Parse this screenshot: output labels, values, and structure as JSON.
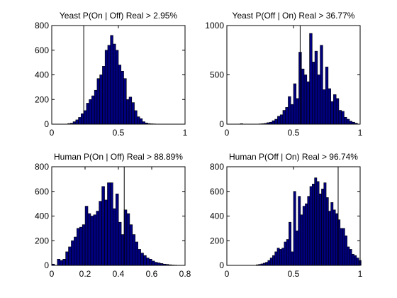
{
  "style": {
    "bar_fill": "#00007f",
    "bar_edge": "#000000",
    "marker_color": "#000000",
    "axes_color": "#000000"
  },
  "chart_data": [
    {
      "type": "bar",
      "title": "Yeast P(On | Off) Real > 2.95%",
      "xlim": [
        0,
        1
      ],
      "ylim": [
        0,
        800
      ],
      "xticks": [
        0,
        0.5,
        1
      ],
      "xtick_labels": [
        "0",
        "0.5",
        "1"
      ],
      "yticks": [
        0,
        200,
        400,
        600,
        800
      ],
      "ytick_labels": [
        "0",
        "200",
        "400",
        "600",
        "800"
      ],
      "bin_start": 0.02,
      "bin_width": 0.02,
      "values": [
        0,
        0,
        0,
        0,
        0,
        5,
        8,
        20,
        35,
        55,
        85,
        110,
        170,
        200,
        230,
        275,
        370,
        400,
        470,
        600,
        640,
        720,
        650,
        600,
        480,
        430,
        370,
        200,
        220,
        175,
        110,
        60,
        45,
        20,
        10,
        5,
        3,
        2,
        0,
        0,
        0,
        0,
        0,
        0,
        0,
        0,
        0,
        0,
        0
      ],
      "marker_x": 0.24
    },
    {
      "type": "bar",
      "title": "Yeast P(Off | On) Real > 36.77%",
      "xlim": [
        0,
        1
      ],
      "ylim": [
        0,
        1000
      ],
      "xticks": [
        0,
        0.5,
        1
      ],
      "xtick_labels": [
        "0",
        "0.5",
        "1"
      ],
      "yticks": [
        0,
        500,
        1000
      ],
      "ytick_labels": [
        "0",
        "500",
        "1000"
      ],
      "bin_start": 0.1,
      "bin_width": 0.02,
      "values": [
        5,
        0,
        0,
        0,
        0,
        0,
        0,
        3,
        5,
        8,
        15,
        20,
        35,
        50,
        80,
        95,
        140,
        170,
        280,
        200,
        410,
        260,
        730,
        560,
        500,
        430,
        920,
        630,
        740,
        500,
        800,
        350,
        580,
        360,
        230,
        300,
        260,
        140,
        130,
        70,
        50,
        30,
        20,
        10
      ],
      "marker_x": 0.55
    },
    {
      "type": "bar",
      "title": "Human P(On | Off) Real > 88.89%",
      "xlim": [
        0,
        0.8
      ],
      "ylim": [
        0,
        800
      ],
      "xticks": [
        0,
        0.2,
        0.4,
        0.6,
        0.8
      ],
      "xtick_labels": [
        "0",
        "0.2",
        "0.4",
        "0.6",
        "0.8"
      ],
      "yticks": [
        0,
        200,
        400,
        600,
        800
      ],
      "ytick_labels": [
        "0",
        "200",
        "400",
        "600",
        "800"
      ],
      "bin_start": 0.0,
      "bin_width": 0.0167,
      "values": [
        10,
        0,
        50,
        40,
        50,
        110,
        150,
        200,
        230,
        300,
        310,
        330,
        480,
        420,
        400,
        410,
        440,
        520,
        640,
        530,
        670,
        670,
        460,
        580,
        350,
        250,
        450,
        420,
        330,
        250,
        190,
        130,
        100,
        80,
        60,
        50,
        35,
        25,
        20,
        15,
        10,
        8,
        5,
        3,
        2
      ],
      "marker_x": 0.435
    },
    {
      "type": "bar",
      "title": "Human P(Off | On) Real > 96.74%",
      "xlim": [
        0,
        1
      ],
      "ylim": [
        0,
        800
      ],
      "xticks": [
        0,
        0.5,
        1
      ],
      "xtick_labels": [
        "0",
        "0.5",
        "1"
      ],
      "yticks": [
        0,
        200,
        400,
        600,
        800
      ],
      "ytick_labels": [
        "0",
        "200",
        "400",
        "600",
        "800"
      ],
      "bin_start": 0.22,
      "bin_width": 0.0175,
      "values": [
        5,
        8,
        12,
        18,
        25,
        40,
        60,
        80,
        110,
        140,
        130,
        140,
        190,
        210,
        350,
        110,
        600,
        280,
        560,
        410,
        480,
        500,
        560,
        640,
        660,
        710,
        680,
        580,
        620,
        670,
        550,
        440,
        510,
        450,
        420,
        370,
        300,
        300,
        240,
        150,
        130,
        90,
        80,
        60,
        40
      ],
      "marker_x": 0.835
    }
  ]
}
